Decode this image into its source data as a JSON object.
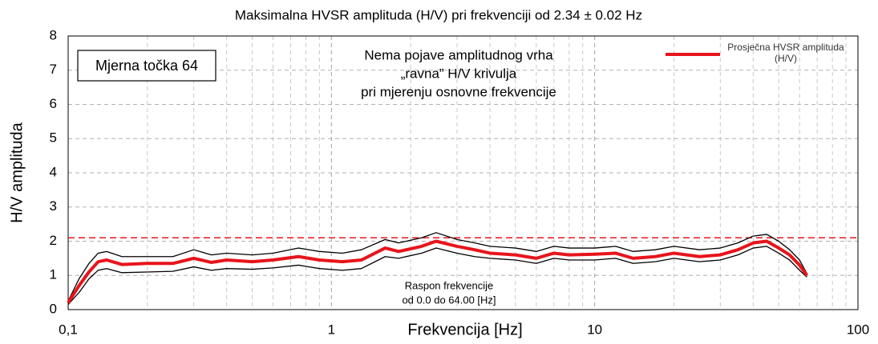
{
  "chart_data": {
    "type": "line",
    "title": "Maksimalna HVSR amplituda (H/V) pri frekvenciji od 2.34 ± 0.02 Hz",
    "xlabel": "Frekvencija [Hz]",
    "ylabel": "H/V amplituda",
    "xscale": "log",
    "grid": true,
    "legend": "upper right",
    "xlim": [
      0.1,
      100
    ],
    "ylim": [
      0,
      8
    ],
    "xticks": [
      {
        "value": 0.1,
        "label": "0,1"
      },
      1,
      10,
      100
    ],
    "xminorticks": [
      0.2,
      0.3,
      0.4,
      0.5,
      0.6,
      0.7,
      0.8,
      0.9,
      2,
      3,
      4,
      5,
      6,
      7,
      8,
      9,
      20,
      30,
      40,
      50,
      60,
      70,
      80,
      90
    ],
    "yticks": [
      0,
      1,
      2,
      3,
      4,
      5,
      6,
      7,
      8
    ],
    "reference_line": {
      "value": 2.1,
      "color": "#e8141b"
    },
    "x": [
      0.1,
      0.11,
      0.12,
      0.13,
      0.14,
      0.16,
      0.2,
      0.25,
      0.3,
      0.35,
      0.4,
      0.5,
      0.6,
      0.75,
      0.9,
      1.1,
      1.3,
      1.6,
      1.8,
      2.2,
      2.5,
      3,
      3.5,
      4,
      5,
      6,
      7,
      8,
      10,
      12,
      14,
      17,
      20,
      25,
      30,
      35,
      40,
      45,
      50,
      55,
      60,
      64
    ],
    "series": [
      {
        "color": "#000000",
        "values": [
          0.25,
          0.9,
          1.35,
          1.65,
          1.7,
          1.55,
          1.55,
          1.55,
          1.75,
          1.6,
          1.65,
          1.6,
          1.65,
          1.8,
          1.7,
          1.65,
          1.75,
          2.05,
          1.95,
          2.1,
          2.25,
          2.05,
          1.95,
          1.85,
          1.8,
          1.7,
          1.85,
          1.8,
          1.8,
          1.85,
          1.7,
          1.75,
          1.85,
          1.75,
          1.8,
          1.95,
          2.15,
          2.2,
          2.0,
          1.75,
          1.45,
          1.05
        ]
      },
      {
        "color": "#000000",
        "values": [
          0.15,
          0.5,
          0.9,
          1.15,
          1.2,
          1.08,
          1.1,
          1.12,
          1.25,
          1.15,
          1.2,
          1.18,
          1.22,
          1.3,
          1.2,
          1.15,
          1.2,
          1.55,
          1.5,
          1.65,
          1.8,
          1.65,
          1.55,
          1.5,
          1.45,
          1.35,
          1.5,
          1.45,
          1.45,
          1.5,
          1.35,
          1.4,
          1.5,
          1.4,
          1.45,
          1.6,
          1.8,
          1.85,
          1.65,
          1.45,
          1.15,
          0.95
        ]
      },
      {
        "name": "Prosječna HVSR amplituda (H/V)",
        "color": "#e8141b",
        "values": [
          0.2,
          0.7,
          1.1,
          1.4,
          1.45,
          1.32,
          1.35,
          1.35,
          1.5,
          1.38,
          1.45,
          1.4,
          1.45,
          1.55,
          1.45,
          1.4,
          1.45,
          1.8,
          1.7,
          1.85,
          2.0,
          1.85,
          1.75,
          1.65,
          1.6,
          1.5,
          1.65,
          1.6,
          1.62,
          1.65,
          1.5,
          1.55,
          1.65,
          1.55,
          1.6,
          1.75,
          1.95,
          2.0,
          1.8,
          1.6,
          1.3,
          1.0
        ]
      }
    ],
    "station_label": "Mjerna točka 64",
    "note_lines": [
      "Nema pojave amplitudnog vrha",
      "„ravna” H/V krivulja",
      "pri mjerenju osnovne frekvencije"
    ],
    "range_lines": [
      "Raspon frekvencije",
      "od 0.0 do 64.00 [Hz]"
    ]
  }
}
